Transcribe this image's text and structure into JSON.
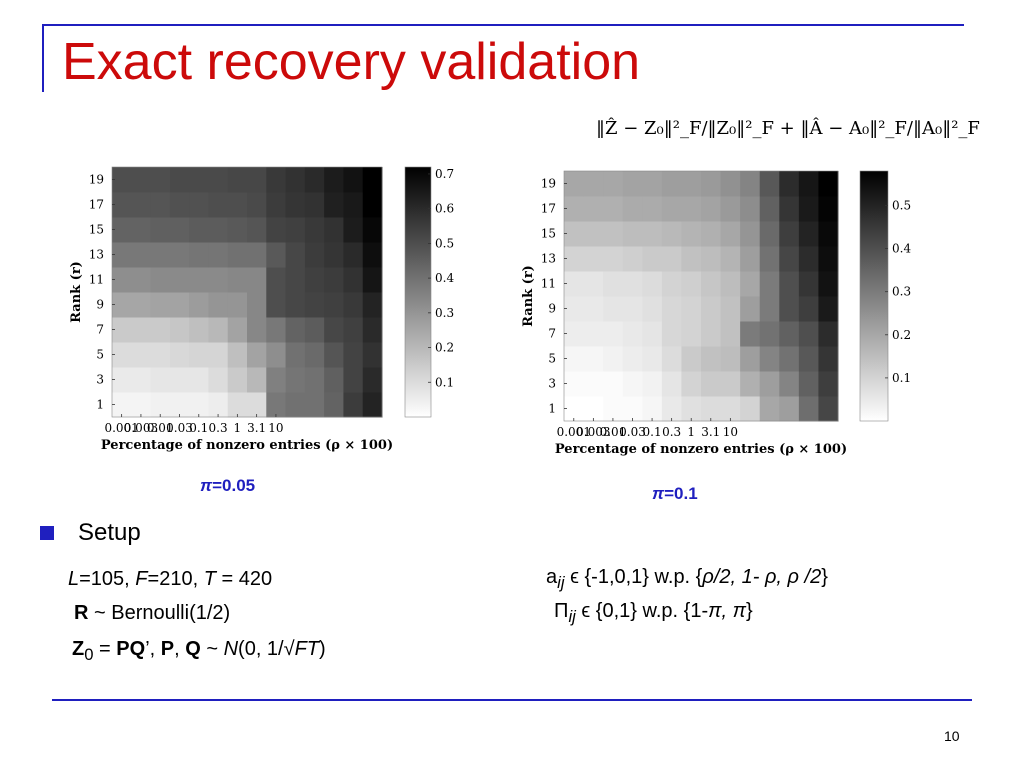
{
  "slide": {
    "title": "Exact recovery validation",
    "formula": "‖Ẑ − Z₀‖²_F/‖Z₀‖²_F + ‖Â − A₀‖²_F/‖A₀‖²_F",
    "page_number": "10"
  },
  "setup": {
    "heading": "Setup",
    "left_lines": [
      [
        {
          "t": "L",
          "s": "i"
        },
        {
          "t": "=105, "
        },
        {
          "t": "F",
          "s": "i"
        },
        {
          "t": "=210, "
        },
        {
          "t": "T",
          "s": "i"
        },
        {
          "t": " = 420"
        }
      ],
      [
        {
          "t": "R",
          "s": "b"
        },
        {
          "t": " ~ Bernoulli(1/2)"
        }
      ],
      [
        {
          "t": "Z",
          "s": "b"
        },
        {
          "t": "0",
          "s": "sub"
        },
        {
          "t": " = "
        },
        {
          "t": "PQ",
          "s": "b"
        },
        {
          "t": "’,  "
        },
        {
          "t": "P",
          "s": "b"
        },
        {
          "t": ", "
        },
        {
          "t": "Q",
          "s": "b"
        },
        {
          "t": " ~ "
        },
        {
          "t": "N",
          "s": "i"
        },
        {
          "t": "(0, 1/√"
        },
        {
          "t": "FT",
          "s": "i"
        },
        {
          "t": ")"
        }
      ]
    ],
    "right_lines": [
      [
        {
          "t": "a"
        },
        {
          "t": "ij",
          "s": "isub"
        },
        {
          "t": " ϵ {-1,0,1} w.p. {"
        },
        {
          "t": "ρ/2, 1- ρ, ρ /2",
          "s": "i"
        },
        {
          "t": "}"
        }
      ],
      [
        {
          "t": "Π"
        },
        {
          "t": "ij",
          "s": "isub"
        },
        {
          "t": " ϵ {0,1} w.p. {1-"
        },
        {
          "t": "π, π",
          "s": "i"
        },
        {
          "t": "}"
        }
      ]
    ]
  },
  "chart_data": [
    {
      "type": "heatmap",
      "caption": "π=0.05",
      "caption_parts": [
        {
          "t": "π",
          "s": "i"
        },
        {
          "t": "=0.05"
        }
      ],
      "xlabel": "Percentage of nonzero entries (ρ × 100)",
      "ylabel": "Rank (r)",
      "x_tick_labels": [
        "0.001",
        "0.003",
        "0.01",
        "0.03",
        "0.1",
        "0.3",
        "1",
        "3.1",
        "10"
      ],
      "x_tick_cols": [
        0,
        1,
        2,
        3,
        4,
        5,
        6,
        7,
        8
      ],
      "y_tick_labels": [
        "1",
        "3",
        "5",
        "7",
        "9",
        "11",
        "13",
        "15",
        "17",
        "19"
      ],
      "colorbar": {
        "range": [
          0.0,
          0.72
        ],
        "ticks": [
          0.1,
          0.2,
          0.3,
          0.4,
          0.5,
          0.6,
          0.7
        ],
        "tick_labels": [
          "0.1",
          "0.2",
          "0.3",
          "0.4",
          "0.5",
          "0.6",
          "0.7"
        ]
      },
      "n_cols": 14,
      "values": [
        [
          0.03,
          0.03,
          0.04,
          0.04,
          0.04,
          0.05,
          0.1,
          0.1,
          0.38,
          0.4,
          0.4,
          0.44,
          0.55,
          0.62
        ],
        [
          0.06,
          0.06,
          0.07,
          0.07,
          0.07,
          0.1,
          0.15,
          0.2,
          0.36,
          0.39,
          0.4,
          0.45,
          0.53,
          0.6
        ],
        [
          0.1,
          0.1,
          0.1,
          0.11,
          0.12,
          0.12,
          0.18,
          0.26,
          0.32,
          0.4,
          0.42,
          0.48,
          0.53,
          0.58
        ],
        [
          0.15,
          0.15,
          0.15,
          0.16,
          0.18,
          0.2,
          0.26,
          0.34,
          0.38,
          0.44,
          0.46,
          0.52,
          0.54,
          0.6
        ],
        [
          0.25,
          0.25,
          0.26,
          0.26,
          0.28,
          0.3,
          0.3,
          0.34,
          0.5,
          0.52,
          0.53,
          0.54,
          0.56,
          0.62
        ],
        [
          0.32,
          0.32,
          0.33,
          0.33,
          0.33,
          0.33,
          0.34,
          0.34,
          0.5,
          0.52,
          0.54,
          0.55,
          0.58,
          0.66
        ],
        [
          0.38,
          0.38,
          0.38,
          0.38,
          0.39,
          0.39,
          0.4,
          0.4,
          0.47,
          0.52,
          0.55,
          0.57,
          0.6,
          0.68
        ],
        [
          0.44,
          0.44,
          0.45,
          0.45,
          0.46,
          0.46,
          0.47,
          0.48,
          0.53,
          0.54,
          0.56,
          0.58,
          0.64,
          0.7
        ],
        [
          0.48,
          0.48,
          0.48,
          0.49,
          0.49,
          0.5,
          0.5,
          0.51,
          0.55,
          0.57,
          0.58,
          0.63,
          0.65,
          0.72
        ],
        [
          0.5,
          0.5,
          0.5,
          0.51,
          0.51,
          0.51,
          0.52,
          0.52,
          0.56,
          0.58,
          0.6,
          0.64,
          0.67,
          0.72
        ]
      ]
    },
    {
      "type": "heatmap",
      "caption": "π=0.1",
      "caption_parts": [
        {
          "t": "π",
          "s": "i"
        },
        {
          "t": "=0.1"
        }
      ],
      "xlabel": "Percentage of nonzero entries (ρ × 100)",
      "ylabel": "Rank (r)",
      "x_tick_labels": [
        "0.001",
        "0.003",
        "0.01",
        "0.03",
        "0.1",
        "0.3",
        "1",
        "3.1",
        "10"
      ],
      "x_tick_cols": [
        0,
        1,
        2,
        3,
        4,
        5,
        6,
        7,
        8
      ],
      "y_tick_labels": [
        "1",
        "3",
        "5",
        "7",
        "9",
        "11",
        "13",
        "15",
        "17",
        "19"
      ],
      "colorbar": {
        "range": [
          0.0,
          0.58
        ],
        "ticks": [
          0.1,
          0.2,
          0.3,
          0.4,
          0.5
        ],
        "tick_labels": [
          "0.1",
          "0.2",
          "0.3",
          "0.4",
          "0.5"
        ]
      },
      "n_cols": 14,
      "values": [
        [
          0.0,
          0.0,
          0.01,
          0.01,
          0.02,
          0.05,
          0.07,
          0.08,
          0.08,
          0.1,
          0.2,
          0.22,
          0.33,
          0.42
        ],
        [
          0.01,
          0.01,
          0.01,
          0.02,
          0.03,
          0.06,
          0.1,
          0.12,
          0.12,
          0.18,
          0.22,
          0.28,
          0.36,
          0.44
        ],
        [
          0.02,
          0.02,
          0.03,
          0.04,
          0.05,
          0.08,
          0.12,
          0.14,
          0.15,
          0.22,
          0.28,
          0.32,
          0.38,
          0.46
        ],
        [
          0.04,
          0.04,
          0.04,
          0.05,
          0.06,
          0.09,
          0.1,
          0.12,
          0.14,
          0.3,
          0.32,
          0.36,
          0.4,
          0.48
        ],
        [
          0.05,
          0.05,
          0.06,
          0.06,
          0.07,
          0.09,
          0.1,
          0.12,
          0.14,
          0.22,
          0.3,
          0.4,
          0.44,
          0.52
        ],
        [
          0.06,
          0.06,
          0.07,
          0.07,
          0.08,
          0.1,
          0.11,
          0.13,
          0.15,
          0.2,
          0.3,
          0.4,
          0.46,
          0.54
        ],
        [
          0.1,
          0.1,
          0.1,
          0.11,
          0.12,
          0.12,
          0.14,
          0.15,
          0.17,
          0.22,
          0.32,
          0.42,
          0.48,
          0.55
        ],
        [
          0.14,
          0.14,
          0.14,
          0.15,
          0.15,
          0.16,
          0.17,
          0.18,
          0.2,
          0.24,
          0.34,
          0.44,
          0.5,
          0.56
        ],
        [
          0.18,
          0.18,
          0.18,
          0.19,
          0.19,
          0.2,
          0.2,
          0.21,
          0.23,
          0.26,
          0.36,
          0.46,
          0.52,
          0.57
        ],
        [
          0.2,
          0.2,
          0.2,
          0.21,
          0.21,
          0.22,
          0.22,
          0.23,
          0.25,
          0.28,
          0.38,
          0.48,
          0.53,
          0.58
        ]
      ]
    }
  ]
}
